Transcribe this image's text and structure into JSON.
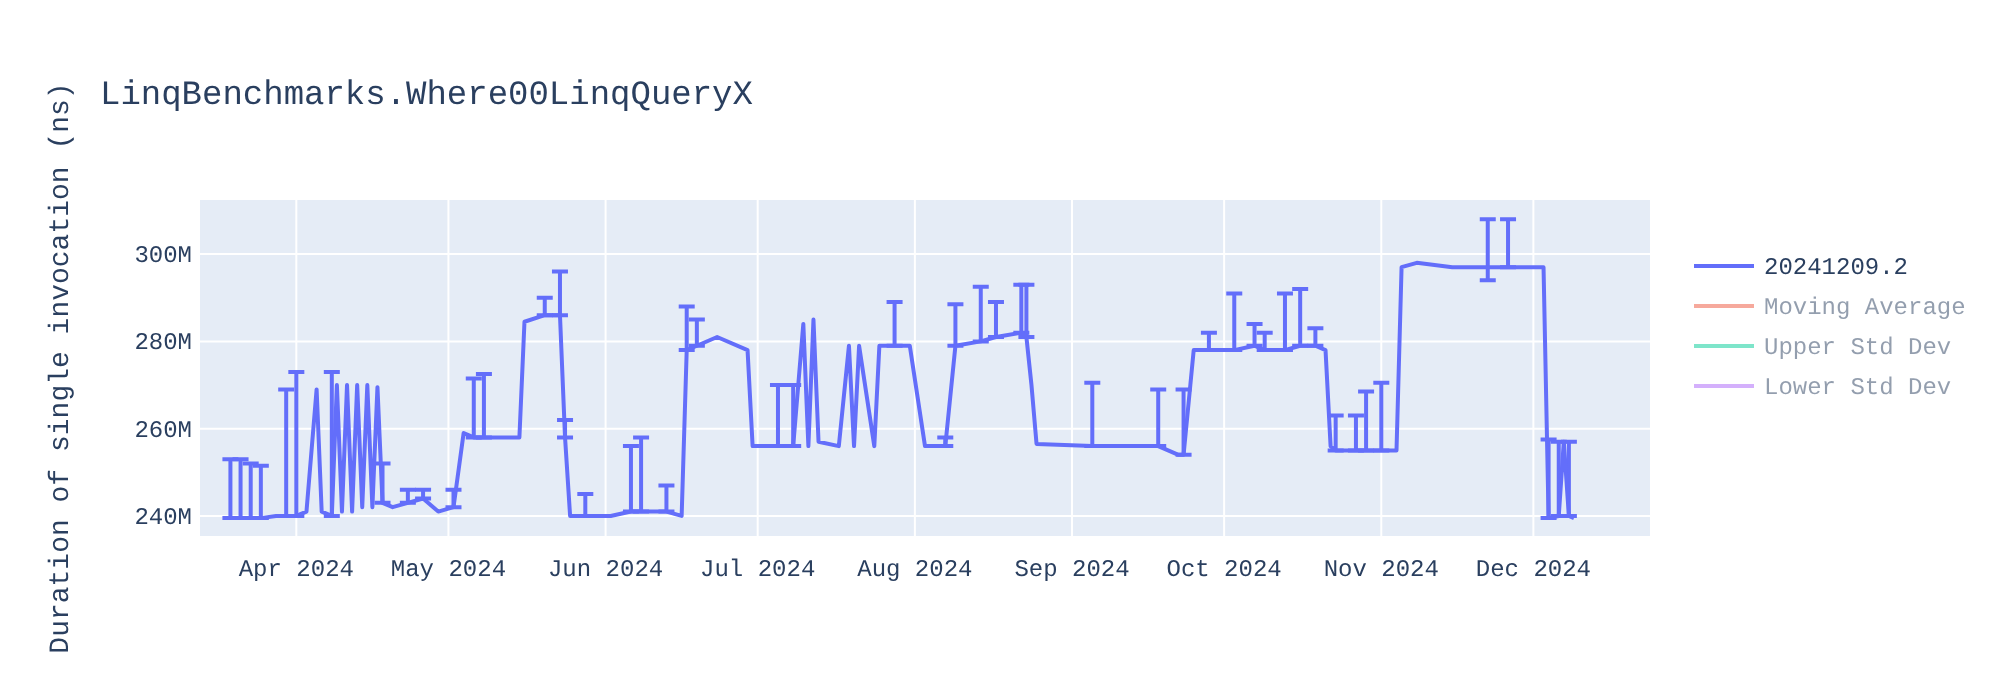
{
  "chart_data": {
    "type": "line",
    "title": "LinqBenchmarks.Where00LinqQueryX",
    "ylabel": "Duration of single invocation (ns)",
    "xlim": [
      "2024-03-13",
      "2024-12-24"
    ],
    "xticks": [
      {
        "value": "2024-04-01",
        "label": "Apr 2024"
      },
      {
        "value": "2024-05-01",
        "label": "May 2024"
      },
      {
        "value": "2024-06-01",
        "label": "Jun 2024"
      },
      {
        "value": "2024-07-01",
        "label": "Jul 2024"
      },
      {
        "value": "2024-08-01",
        "label": "Aug 2024"
      },
      {
        "value": "2024-09-01",
        "label": "Sep 2024"
      },
      {
        "value": "2024-10-01",
        "label": "Oct 2024"
      },
      {
        "value": "2024-11-01",
        "label": "Nov 2024"
      },
      {
        "value": "2024-12-01",
        "label": "Dec 2024"
      }
    ],
    "ylim": [
      235.4,
      312.4
    ],
    "yticks": [
      {
        "value": 240,
        "label": "240M"
      },
      {
        "value": 260,
        "label": "260M"
      },
      {
        "value": 280,
        "label": "280M"
      },
      {
        "value": 300,
        "label": "300M"
      }
    ],
    "grid": true,
    "legend": "right",
    "x": [
      "2024-03-19",
      "2024-03-21",
      "2024-03-23",
      "2024-03-25",
      "2024-03-28",
      "2024-03-30",
      "2024-04-01",
      "2024-04-03",
      "2024-04-05",
      "2024-04-06",
      "2024-04-08",
      "2024-04-09",
      "2024-04-10",
      "2024-04-11",
      "2024-04-12",
      "2024-04-13",
      "2024-04-14",
      "2024-04-15",
      "2024-04-16",
      "2024-04-17",
      "2024-04-18",
      "2024-04-20",
      "2024-04-23",
      "2024-04-26",
      "2024-04-29",
      "2024-05-02",
      "2024-05-04",
      "2024-05-06",
      "2024-05-08",
      "2024-05-12",
      "2024-05-15",
      "2024-05-16",
      "2024-05-20",
      "2024-05-23",
      "2024-05-24",
      "2024-05-25",
      "2024-05-28",
      "2024-06-02",
      "2024-06-06",
      "2024-06-08",
      "2024-06-13",
      "2024-06-16",
      "2024-06-17",
      "2024-06-19",
      "2024-06-23",
      "2024-06-29",
      "2024-06-30",
      "2024-07-05",
      "2024-07-08",
      "2024-07-10",
      "2024-07-11",
      "2024-07-12",
      "2024-07-13",
      "2024-07-17",
      "2024-07-19",
      "2024-07-20",
      "2024-07-21",
      "2024-07-24",
      "2024-07-25",
      "2024-07-28",
      "2024-07-31",
      "2024-08-03",
      "2024-08-07",
      "2024-08-09",
      "2024-08-14",
      "2024-08-17",
      "2024-08-22",
      "2024-08-23",
      "2024-08-24",
      "2024-08-25",
      "2024-09-05",
      "2024-09-12",
      "2024-09-18",
      "2024-09-22",
      "2024-09-23",
      "2024-09-25",
      "2024-09-28",
      "2024-10-03",
      "2024-10-07",
      "2024-10-09",
      "2024-10-13",
      "2024-10-16",
      "2024-10-19",
      "2024-10-21",
      "2024-10-22",
      "2024-10-23",
      "2024-10-27",
      "2024-10-29",
      "2024-11-01",
      "2024-11-04",
      "2024-11-05",
      "2024-11-08",
      "2024-11-15",
      "2024-11-22",
      "2024-11-26",
      "2024-12-03",
      "2024-12-04",
      "2024-12-06",
      "2024-12-07",
      "2024-12-08",
      "2024-12-09"
    ],
    "series": [
      {
        "name": "20241209.2",
        "color": "#636efa",
        "marker": "none",
        "line_style": "solid",
        "values": [
          239.5,
          239.5,
          239.5,
          239.5,
          240,
          240,
          240,
          241,
          269,
          241,
          240,
          270,
          241,
          270,
          241,
          270,
          242,
          270,
          242,
          269.5,
          243,
          242,
          243,
          244,
          241,
          242,
          259,
          258,
          258,
          258,
          258,
          284.5,
          286,
          286,
          258,
          240,
          240,
          240,
          241,
          241,
          241,
          240,
          278,
          279,
          281,
          278,
          256,
          256,
          256,
          284,
          256,
          285,
          257,
          256,
          279,
          256,
          279,
          256,
          279,
          279,
          279,
          256,
          256,
          279,
          280,
          281,
          282,
          281,
          270,
          256.5,
          256,
          256,
          256,
          254,
          254,
          278,
          278,
          278,
          279,
          278,
          278,
          279,
          279,
          278,
          256,
          255,
          255,
          255,
          255,
          255,
          297,
          298,
          297,
          297,
          297,
          297,
          239.5,
          240,
          257,
          240,
          239.5
        ],
        "errors": [
          [
            239.5,
            253
          ],
          [
            239.5,
            253
          ],
          [
            239.5,
            252
          ],
          [
            239.5,
            251.5
          ],
          null,
          [
            240,
            269
          ],
          [
            240,
            273
          ],
          null,
          null,
          null,
          [
            240,
            273
          ],
          null,
          null,
          null,
          null,
          null,
          null,
          null,
          null,
          null,
          [
            243,
            252
          ],
          null,
          [
            243,
            246
          ],
          [
            244,
            246
          ],
          null,
          [
            242,
            246
          ],
          null,
          [
            258,
            271.5
          ],
          [
            258,
            272.5
          ],
          null,
          null,
          null,
          [
            286,
            290
          ],
          [
            286,
            296
          ],
          [
            258,
            262
          ],
          null,
          [
            240,
            245
          ],
          null,
          [
            241,
            256
          ],
          [
            241,
            258
          ],
          [
            241,
            247
          ],
          null,
          [
            278,
            288
          ],
          [
            279,
            285
          ],
          null,
          null,
          null,
          [
            256,
            270
          ],
          [
            256,
            270
          ],
          null,
          null,
          null,
          null,
          null,
          null,
          null,
          null,
          null,
          null,
          [
            279,
            289
          ],
          null,
          null,
          [
            256,
            258
          ],
          [
            279,
            288.5
          ],
          [
            280,
            292.5
          ],
          [
            281,
            289
          ],
          [
            282,
            293
          ],
          [
            281,
            293
          ],
          null,
          null,
          [
            256,
            270.5
          ],
          null,
          [
            256,
            269
          ],
          null,
          [
            254,
            269
          ],
          null,
          [
            278,
            282
          ],
          [
            278,
            291
          ],
          [
            279,
            284
          ],
          [
            278,
            282
          ],
          [
            278,
            291
          ],
          [
            279,
            292
          ],
          [
            279,
            283
          ],
          null,
          null,
          [
            255,
            263
          ],
          [
            255,
            263
          ],
          [
            255,
            268.5
          ],
          [
            255,
            270.5
          ],
          null,
          null,
          null,
          null,
          [
            294,
            308
          ],
          [
            297,
            308
          ],
          null,
          [
            239.5,
            257.5
          ],
          [
            240,
            257
          ],
          null,
          [
            240,
            257
          ],
          null
        ]
      },
      {
        "name": "Moving Average",
        "color": "#ef553b",
        "values": [
          null,
          null,
          null,
          null,
          null,
          null,
          null,
          null,
          null,
          null,
          null,
          null,
          null,
          null,
          null,
          null,
          null,
          null,
          null,
          null,
          null,
          null,
          null,
          null,
          null,
          null,
          null,
          null,
          null,
          null,
          null,
          null,
          null,
          null,
          null,
          null,
          null,
          null,
          null,
          null,
          null,
          null,
          null,
          null,
          null,
          null,
          null,
          null,
          null,
          null,
          null,
          null,
          null,
          null,
          null,
          null,
          null,
          null,
          null,
          null,
          null,
          null,
          null,
          null,
          null,
          null,
          null,
          null,
          null,
          null,
          null,
          null,
          null,
          null,
          null,
          null,
          null,
          null,
          null,
          null,
          null,
          null,
          null,
          null,
          null,
          null,
          null,
          null,
          null,
          null,
          null,
          null,
          null,
          null,
          null,
          null,
          null,
          null,
          null,
          null,
          null
        ]
      },
      {
        "name": "Upper Std Dev",
        "color": "#00cc96",
        "values": [
          null,
          null,
          null,
          null,
          null,
          null,
          null,
          null,
          null,
          null,
          null,
          null,
          null,
          null,
          null,
          null,
          null,
          null,
          null,
          null,
          null,
          null,
          null,
          null,
          null,
          null,
          null,
          null,
          null,
          null,
          null,
          null,
          null,
          null,
          null,
          null,
          null,
          null,
          null,
          null,
          null,
          null,
          null,
          null,
          null,
          null,
          null,
          null,
          null,
          null,
          null,
          null,
          null,
          null,
          null,
          null,
          null,
          null,
          null,
          null,
          null,
          null,
          null,
          null,
          null,
          null,
          null,
          null,
          null,
          null,
          null,
          null,
          null,
          null,
          null,
          null,
          null,
          null,
          null,
          null,
          null,
          null,
          null,
          null,
          null,
          null,
          null,
          null,
          null,
          null,
          null,
          null,
          null,
          null,
          null,
          null,
          null,
          null,
          null,
          null,
          null
        ]
      },
      {
        "name": "Lower Std Dev",
        "color": "#ab63fa",
        "values": [
          null,
          null,
          null,
          null,
          null,
          null,
          null,
          null,
          null,
          null,
          null,
          null,
          null,
          null,
          null,
          null,
          null,
          null,
          null,
          null,
          null,
          null,
          null,
          null,
          null,
          null,
          null,
          null,
          null,
          null,
          null,
          null,
          null,
          null,
          null,
          null,
          null,
          null,
          null,
          null,
          null,
          null,
          null,
          null,
          null,
          null,
          null,
          null,
          null,
          null,
          null,
          null,
          null,
          null,
          null,
          null,
          null,
          null,
          null,
          null,
          null,
          null,
          null,
          null,
          null,
          null,
          null,
          null,
          null,
          null,
          null,
          null,
          null,
          null,
          null,
          null,
          null,
          null,
          null,
          null,
          null,
          null,
          null,
          null,
          null,
          null,
          null,
          null,
          null,
          null,
          null,
          null,
          null,
          null,
          null,
          null,
          null,
          null,
          null,
          null,
          null
        ]
      }
    ]
  }
}
